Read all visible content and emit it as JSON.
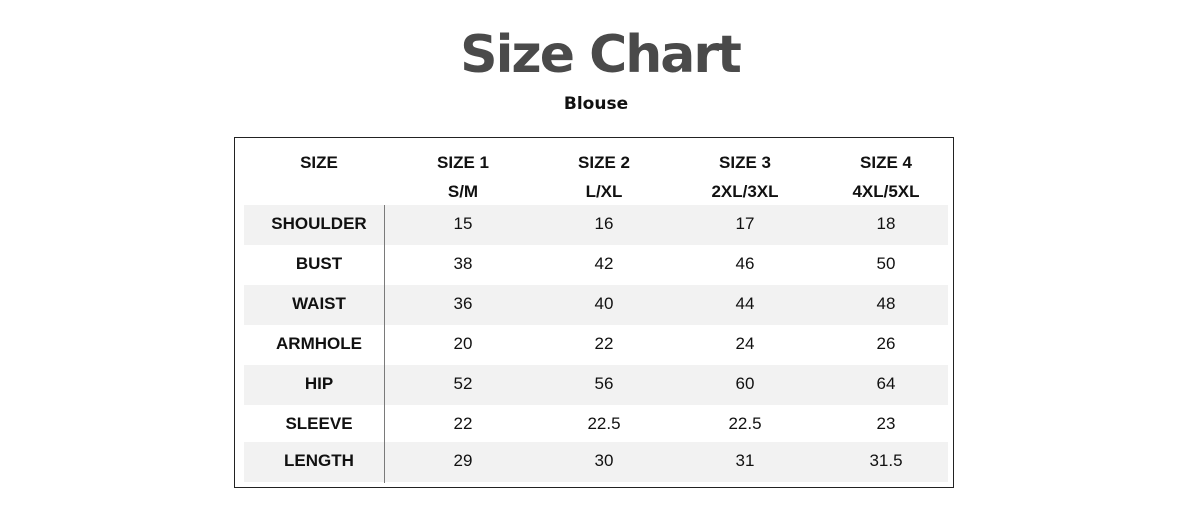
{
  "title": "Size Chart",
  "subtitle": "Blouse",
  "table": {
    "corner_label": "SIZE",
    "columns": [
      {
        "name": "SIZE 1",
        "sub": "S/M"
      },
      {
        "name": "SIZE 2",
        "sub": "L/XL"
      },
      {
        "name": "SIZE 3",
        "sub": "2XL/3XL"
      },
      {
        "name": "SIZE 4",
        "sub": "4XL/5XL"
      }
    ],
    "rows": [
      {
        "label": "SHOULDER",
        "values": [
          "15",
          "16",
          "17",
          "18"
        ]
      },
      {
        "label": "BUST",
        "values": [
          "38",
          "42",
          "46",
          "50"
        ]
      },
      {
        "label": "WAIST",
        "values": [
          "36",
          "40",
          "44",
          "48"
        ]
      },
      {
        "label": "ARMHOLE",
        "values": [
          "20",
          "22",
          "24",
          "26"
        ]
      },
      {
        "label": "HIP",
        "values": [
          "52",
          "56",
          "60",
          "64"
        ]
      },
      {
        "label": "SLEEVE",
        "values": [
          "22",
          "22.5",
          "22.5",
          "23"
        ]
      },
      {
        "label": "LENGTH",
        "values": [
          "29",
          "30",
          "31",
          "31.5"
        ]
      }
    ]
  },
  "colors": {
    "title": "#4a4a4a",
    "row_shade": "#f2f2f2",
    "border": "#222222"
  }
}
